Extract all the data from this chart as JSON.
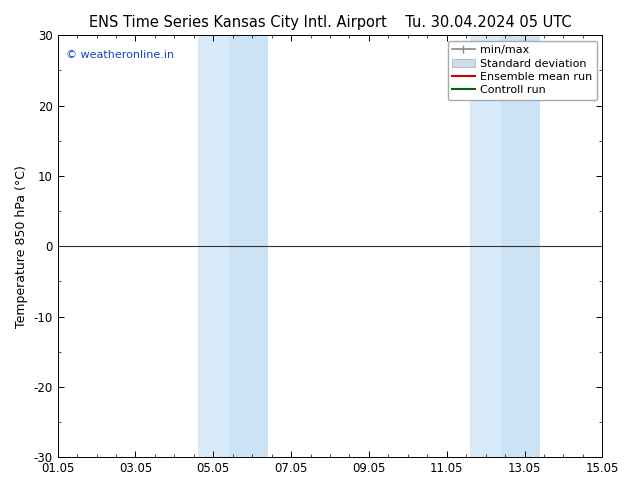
{
  "title_left": "ENS Time Series Kansas City Intl. Airport",
  "title_right": "Tu. 30.04.2024 05 UTC",
  "ylabel": "Temperature 850 hPa (°C)",
  "ylim": [
    -30,
    30
  ],
  "yticks": [
    -30,
    -20,
    -10,
    0,
    10,
    20,
    30
  ],
  "xtick_labels": [
    "01.05",
    "03.05",
    "05.05",
    "07.05",
    "09.05",
    "11.05",
    "13.05",
    "15.05"
  ],
  "xtick_positions": [
    0,
    2,
    4,
    6,
    8,
    10,
    12,
    14
  ],
  "blue_bands": [
    {
      "x_start": 3.6,
      "x_end": 4.4,
      "color": "#d8eaf8"
    },
    {
      "x_start": 4.4,
      "x_end": 5.4,
      "color": "#cce2f5"
    },
    {
      "x_start": 10.6,
      "x_end": 11.4,
      "color": "#d8eaf8"
    },
    {
      "x_start": 11.4,
      "x_end": 12.4,
      "color": "#cce2f5"
    }
  ],
  "watermark": "© weatheronline.in",
  "watermark_color": "#1144cc",
  "legend_items": [
    {
      "label": "min/max",
      "color": "#888888",
      "lw": 1.2,
      "type": "line_with_ticks"
    },
    {
      "label": "Standard deviation",
      "color": "#ccddee",
      "type": "patch"
    },
    {
      "label": "Ensemble mean run",
      "color": "#cc0000",
      "lw": 1.5,
      "type": "line"
    },
    {
      "label": "Controll run",
      "color": "#006600",
      "lw": 1.5,
      "type": "line"
    }
  ],
  "hline_y": 0,
  "hline_color": "#333333",
  "hline_lw": 0.8,
  "bg_color": "#ffffff",
  "title_fontsize": 10.5,
  "tick_fontsize": 8.5,
  "ylabel_fontsize": 9,
  "legend_fontsize": 8
}
